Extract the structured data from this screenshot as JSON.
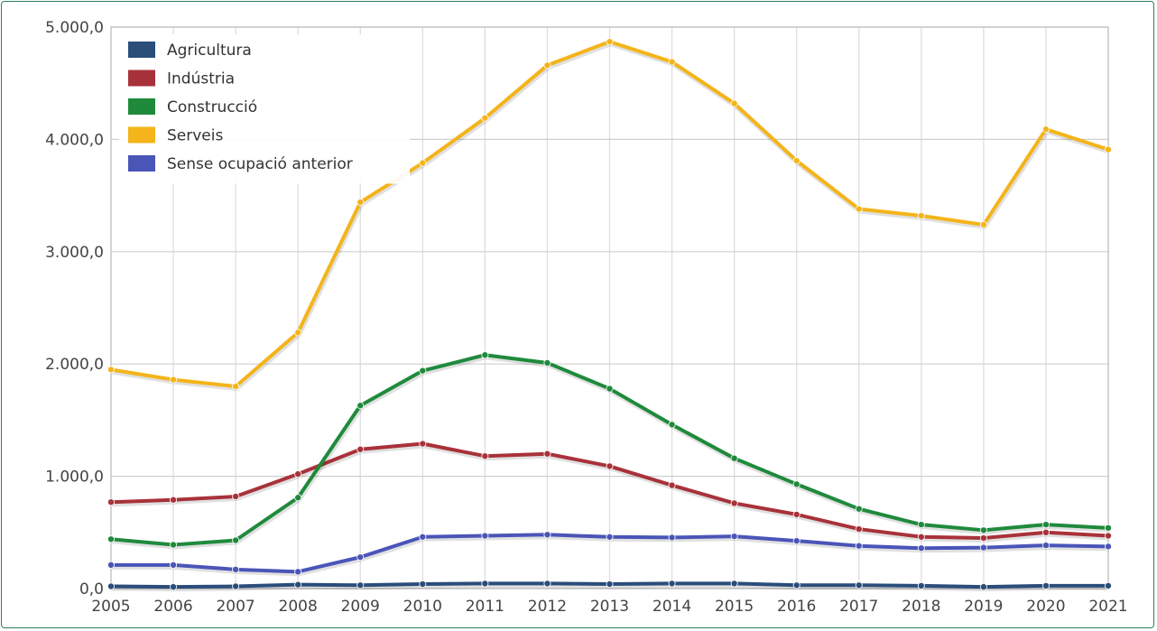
{
  "chart_data": {
    "type": "line",
    "x": [
      "2005",
      "2006",
      "2007",
      "2008",
      "2009",
      "2010",
      "2011",
      "2012",
      "2013",
      "2014",
      "2015",
      "2016",
      "2017",
      "2018",
      "2019",
      "2020",
      "2021"
    ],
    "ylim": [
      0,
      5000
    ],
    "yticks": [
      0,
      1000,
      2000,
      3000,
      4000,
      5000
    ],
    "ytick_labels": [
      "0,0",
      "1.000,0",
      "2.000,0",
      "3.000,0",
      "4.000,0",
      "5.000,0"
    ],
    "grid": true,
    "legend_position": "top-left",
    "series": [
      {
        "name": "Agricultura",
        "color": "#2a4d7a",
        "values": [
          20,
          15,
          20,
          35,
          30,
          40,
          45,
          45,
          40,
          45,
          45,
          30,
          30,
          25,
          15,
          25,
          25
        ]
      },
      {
        "name": "Indústria",
        "color": "#a8323a",
        "values": [
          770,
          790,
          820,
          1020,
          1240,
          1290,
          1180,
          1200,
          1090,
          920,
          760,
          660,
          530,
          460,
          450,
          500,
          470
        ]
      },
      {
        "name": "Construcció",
        "color": "#1f8a3c",
        "values": [
          440,
          390,
          430,
          810,
          1630,
          1940,
          2080,
          2010,
          1780,
          1460,
          1160,
          930,
          710,
          570,
          520,
          570,
          540
        ]
      },
      {
        "name": "Serveis",
        "color": "#f4b41a",
        "values": [
          1950,
          1860,
          1800,
          2280,
          3440,
          3790,
          4190,
          4660,
          4870,
          4690,
          4320,
          3810,
          3380,
          3320,
          3240,
          4090,
          3910
        ]
      },
      {
        "name": "Sense ocupació anterior",
        "color": "#4a55b8",
        "values": [
          210,
          210,
          170,
          150,
          280,
          460,
          470,
          480,
          460,
          455,
          465,
          425,
          380,
          360,
          365,
          385,
          375
        ]
      }
    ]
  }
}
